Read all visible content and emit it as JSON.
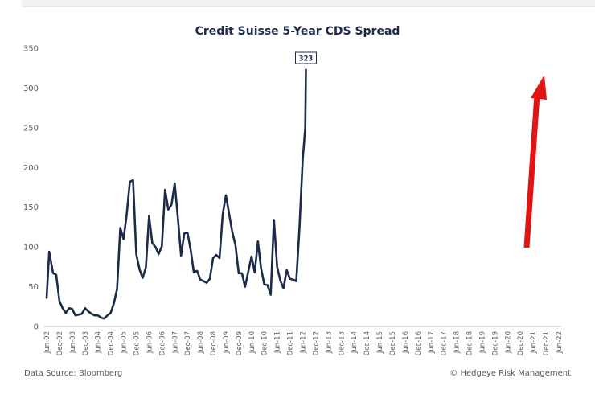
{
  "chart_data": {
    "type": "line",
    "title": "Credit Suisse 5-Year CDS Spread",
    "xlabel": "",
    "ylabel": "",
    "ylim": [
      0,
      350
    ],
    "yticks": [
      0,
      50,
      100,
      150,
      200,
      250,
      300,
      350
    ],
    "grid": false,
    "categories": [
      "Jun-02",
      "Dec-02",
      "Jun-03",
      "Dec-03",
      "Jun-04",
      "Dec-04",
      "Jun-05",
      "Dec-05",
      "Jun-06",
      "Dec-06",
      "Jun-07",
      "Dec-07",
      "Jun-08",
      "Dec-08",
      "Jun-09",
      "Dec-09",
      "Jun-10",
      "Dec-10",
      "Jun-11",
      "Dec-11",
      "Jun-12",
      "Dec-12",
      "Jun-13",
      "Dec-13",
      "Jun-14",
      "Dec-14",
      "Jun-15",
      "Dec-15",
      "Jun-16",
      "Dec-16",
      "Jun-17",
      "Dec-17",
      "Jun-18",
      "Dec-18",
      "Jun-19",
      "Dec-19",
      "Jun-20",
      "Dec-20",
      "Jun-21",
      "Dec-21",
      "Jun-22"
    ],
    "series": [
      {
        "color": "#1c2b4a",
        "points": [
          [
            0,
            36
          ],
          [
            0.2,
            94
          ],
          [
            0.5,
            67
          ],
          [
            0.75,
            65
          ],
          [
            1,
            32
          ],
          [
            1.25,
            23
          ],
          [
            1.5,
            17
          ],
          [
            1.75,
            23
          ],
          [
            2,
            22
          ],
          [
            2.25,
            14
          ],
          [
            2.5,
            15
          ],
          [
            2.75,
            16
          ],
          [
            3,
            23
          ],
          [
            3.25,
            19
          ],
          [
            3.5,
            16
          ],
          [
            3.75,
            14
          ],
          [
            4,
            14
          ],
          [
            4.25,
            11
          ],
          [
            4.5,
            10
          ],
          [
            4.75,
            14
          ],
          [
            5,
            17
          ],
          [
            5.25,
            29
          ],
          [
            5.5,
            47
          ],
          [
            5.75,
            124
          ],
          [
            6,
            110
          ],
          [
            6.25,
            140
          ],
          [
            6.5,
            182
          ],
          [
            6.75,
            184
          ],
          [
            7,
            91
          ],
          [
            7.25,
            72
          ],
          [
            7.5,
            61
          ],
          [
            7.75,
            74
          ],
          [
            8,
            139
          ],
          [
            8.25,
            105
          ],
          [
            8.5,
            100
          ],
          [
            8.75,
            91
          ],
          [
            9,
            101
          ],
          [
            9.25,
            172
          ],
          [
            9.5,
            147
          ],
          [
            9.75,
            153
          ],
          [
            10,
            180
          ],
          [
            10.25,
            137
          ],
          [
            10.5,
            89
          ],
          [
            10.75,
            117
          ],
          [
            11,
            118
          ],
          [
            11.25,
            96
          ],
          [
            11.5,
            68
          ],
          [
            11.75,
            70
          ],
          [
            12,
            59
          ],
          [
            12.25,
            57
          ],
          [
            12.5,
            55
          ],
          [
            12.75,
            60
          ],
          [
            13,
            86
          ],
          [
            13.25,
            90
          ],
          [
            13.5,
            86
          ],
          [
            13.75,
            141
          ],
          [
            14,
            165
          ],
          [
            14.25,
            142
          ],
          [
            14.5,
            119
          ],
          [
            14.75,
            102
          ],
          [
            15,
            67
          ],
          [
            15.25,
            67
          ],
          [
            15.5,
            50
          ],
          [
            15.75,
            69
          ],
          [
            16,
            88
          ],
          [
            16.25,
            68
          ],
          [
            16.5,
            107
          ],
          [
            16.75,
            73
          ],
          [
            17,
            53
          ],
          [
            17.25,
            52
          ],
          [
            17.5,
            40
          ],
          [
            17.75,
            134
          ],
          [
            18,
            75
          ],
          [
            18.25,
            58
          ],
          [
            18.5,
            48
          ],
          [
            18.75,
            71
          ],
          [
            19,
            60
          ],
          [
            19.25,
            59
          ],
          [
            19.5,
            57
          ],
          [
            19.75,
            125
          ],
          [
            20,
            210
          ],
          [
            20.2,
            250
          ],
          [
            20.25,
            323
          ]
        ]
      }
    ],
    "annotations": [
      {
        "text": "323",
        "x": 20.25,
        "y": 323
      }
    ],
    "arrow_color": "#e01414"
  },
  "footer": {
    "source": "Data Source: Bloomberg",
    "credit": "© Hedgeye Risk Management"
  }
}
